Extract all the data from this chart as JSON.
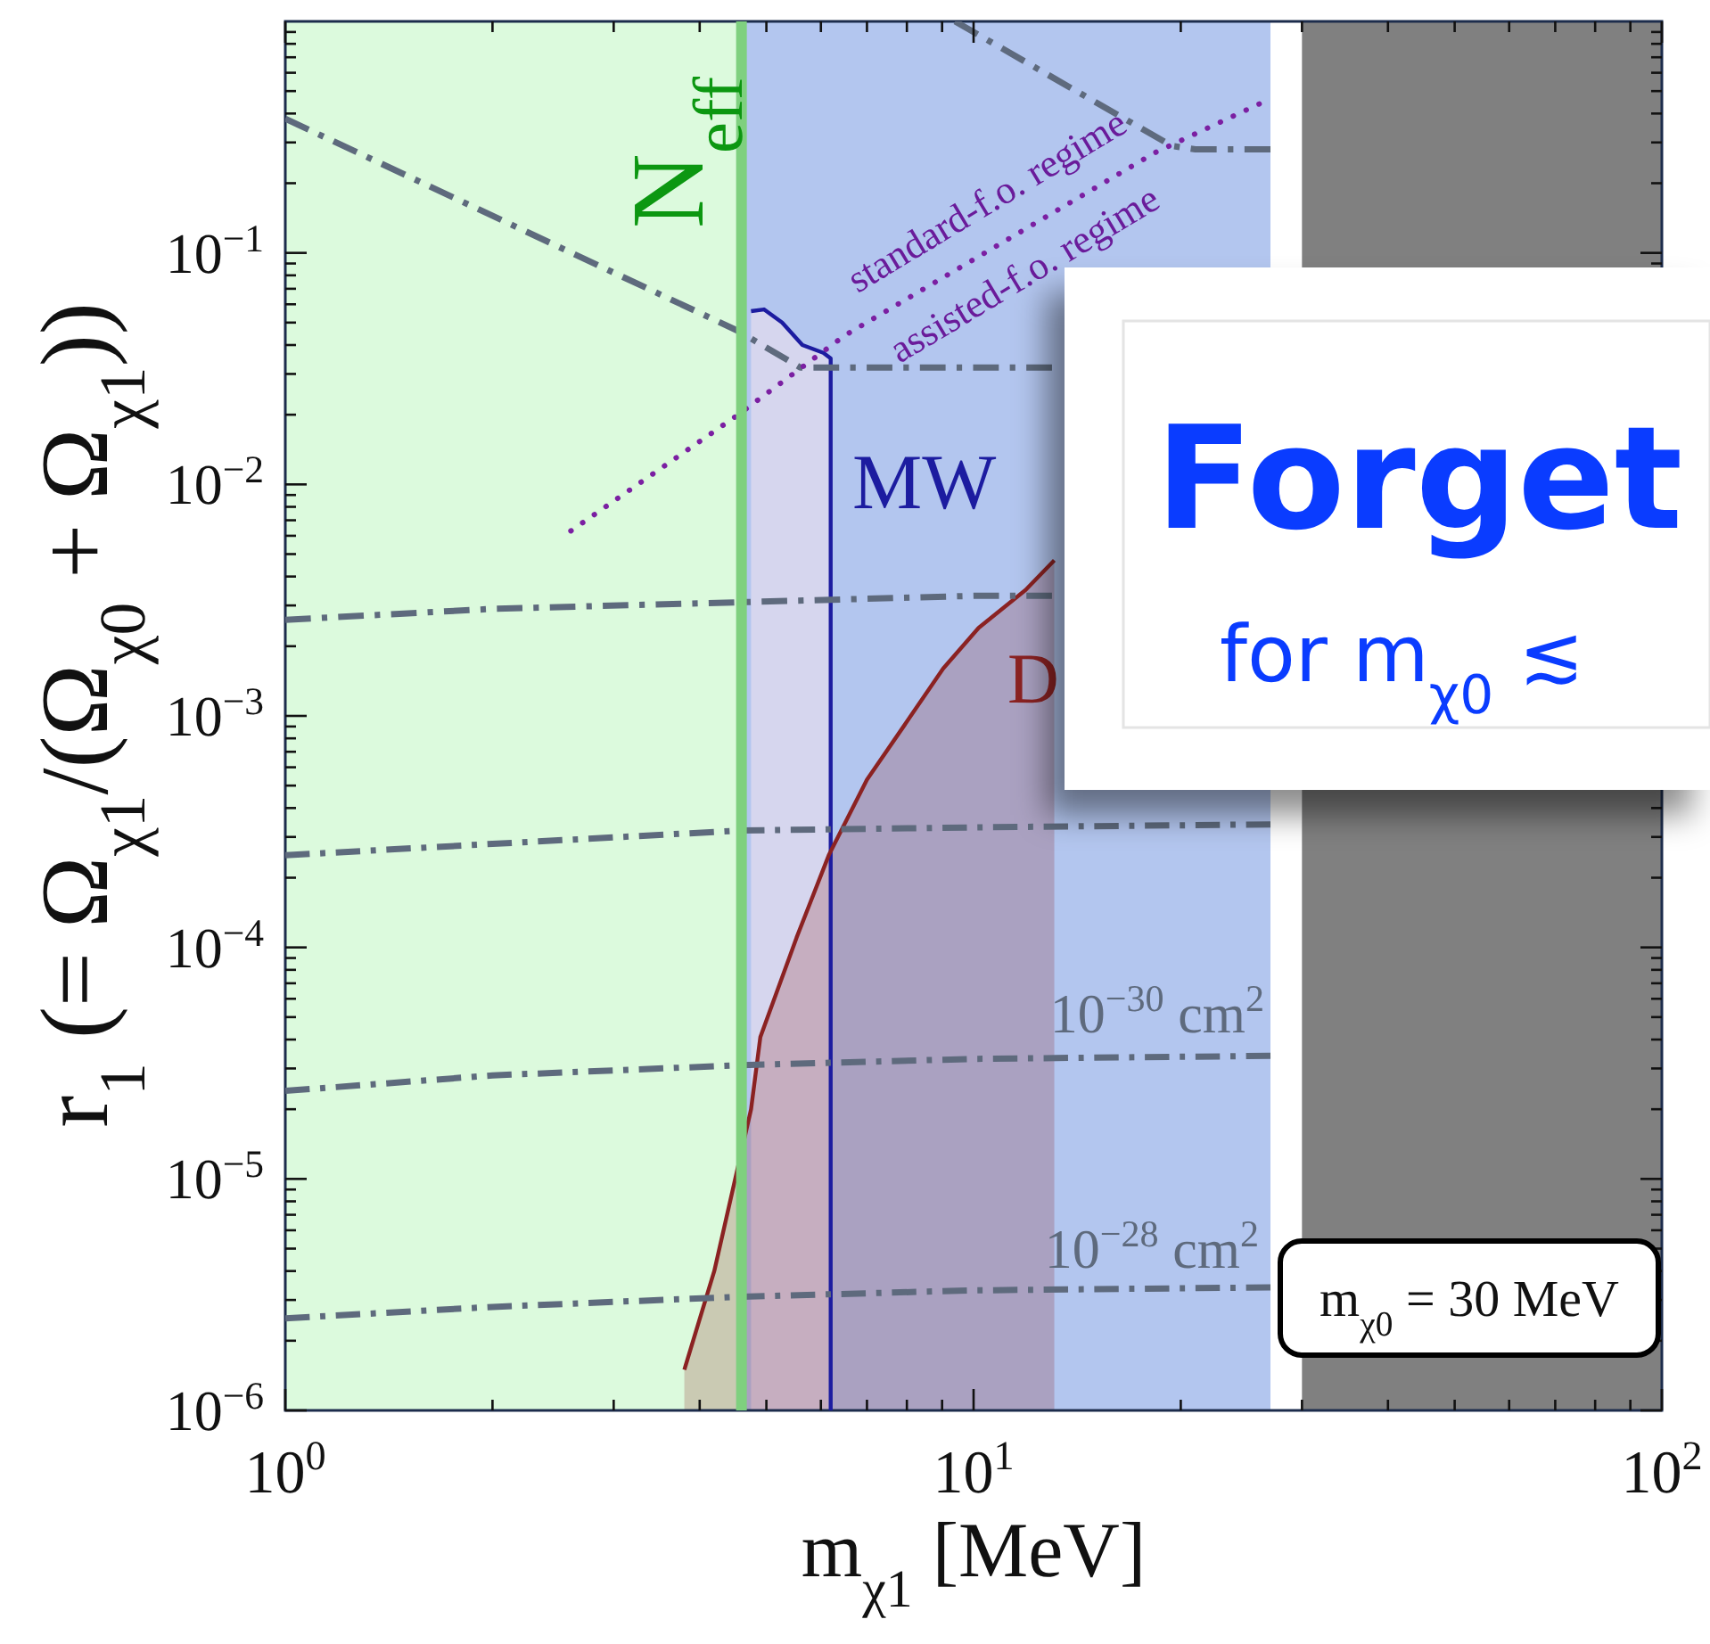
{
  "chart_data": {
    "type": "line",
    "xlabel": "m$_{χ1}$ [MeV]",
    "ylabel": "r$_{1}$ (= Ω$_{χ1}$/(Ω$_{χ0}$ + Ω$_{χ1}$))",
    "log": "xy",
    "xlim": [
      1,
      100
    ],
    "ylim": [
      1e-06,
      1
    ],
    "xticks": [
      {
        "value": 1,
        "label": "10$^{0}$"
      },
      {
        "value": 2,
        "label": null
      },
      {
        "value": 3,
        "label": null
      },
      {
        "value": 4,
        "label": null
      },
      {
        "value": 5,
        "label": null
      },
      {
        "value": 6,
        "label": null
      },
      {
        "value": 7,
        "label": null
      },
      {
        "value": 8,
        "label": null
      },
      {
        "value": 9,
        "label": null
      },
      {
        "value": 10,
        "label": "10$^{1}$"
      },
      {
        "value": 20,
        "label": null
      },
      {
        "value": 30,
        "label": null
      },
      {
        "value": 40,
        "label": null
      },
      {
        "value": 50,
        "label": null
      },
      {
        "value": 60,
        "label": null
      },
      {
        "value": 70,
        "label": null
      },
      {
        "value": 80,
        "label": null
      },
      {
        "value": 90,
        "label": null
      },
      {
        "value": 100,
        "label": "10$^{2}$"
      }
    ],
    "yticks": [
      {
        "value": 1e-06,
        "label": "10$^{−6}$"
      },
      {
        "value": 2e-06,
        "label": null
      },
      {
        "value": 3e-06,
        "label": null
      },
      {
        "value": 4e-06,
        "label": null
      },
      {
        "value": 5e-06,
        "label": null
      },
      {
        "value": 6e-06,
        "label": null
      },
      {
        "value": 7e-06,
        "label": null
      },
      {
        "value": 8e-06,
        "label": null
      },
      {
        "value": 9e-06,
        "label": null
      },
      {
        "value": 1e-05,
        "label": "10$^{−5}$"
      },
      {
        "value": 2e-05,
        "label": null
      },
      {
        "value": 3e-05,
        "label": null
      },
      {
        "value": 4e-05,
        "label": null
      },
      {
        "value": 5e-05,
        "label": null
      },
      {
        "value": 6e-05,
        "label": null
      },
      {
        "value": 7e-05,
        "label": null
      },
      {
        "value": 8e-05,
        "label": null
      },
      {
        "value": 9e-05,
        "label": null
      },
      {
        "value": 0.0001,
        "label": "10$^{−4}$"
      },
      {
        "value": 0.0002,
        "label": null
      },
      {
        "value": 0.0003,
        "label": null
      },
      {
        "value": 0.0004,
        "label": null
      },
      {
        "value": 0.0005,
        "label": null
      },
      {
        "value": 0.0006,
        "label": null
      },
      {
        "value": 0.0007,
        "label": null
      },
      {
        "value": 0.0008,
        "label": null
      },
      {
        "value": 0.0009,
        "label": null
      },
      {
        "value": 0.001,
        "label": "10$^{−3}$"
      },
      {
        "value": 0.002,
        "label": null
      },
      {
        "value": 0.003,
        "label": null
      },
      {
        "value": 0.004,
        "label": null
      },
      {
        "value": 0.005,
        "label": null
      },
      {
        "value": 0.006,
        "label": null
      },
      {
        "value": 0.007,
        "label": null
      },
      {
        "value": 0.008,
        "label": null
      },
      {
        "value": 0.009,
        "label": null
      },
      {
        "value": 0.01,
        "label": "10$^{−2}$"
      },
      {
        "value": 0.02,
        "label": null
      },
      {
        "value": 0.03,
        "label": null
      },
      {
        "value": 0.04,
        "label": null
      },
      {
        "value": 0.05,
        "label": null
      },
      {
        "value": 0.06,
        "label": null
      },
      {
        "value": 0.07,
        "label": null
      },
      {
        "value": 0.08,
        "label": null
      },
      {
        "value": 0.09,
        "label": null
      },
      {
        "value": 0.1,
        "label": "10$^{−1}$"
      },
      {
        "value": 0.2,
        "label": null
      },
      {
        "value": 0.3,
        "label": null
      },
      {
        "value": 0.4,
        "label": null
      },
      {
        "value": 0.5,
        "label": null
      },
      {
        "value": 0.6,
        "label": null
      },
      {
        "value": 0.7,
        "label": null
      },
      {
        "value": 0.8,
        "label": null
      },
      {
        "value": 0.9,
        "label": null
      }
    ],
    "bands": [
      {
        "axis": "x",
        "from": 4.6,
        "to": 27,
        "color": "#b3c6ef"
      },
      {
        "axis": "x",
        "from": 30,
        "to": 100,
        "color": "#808080"
      },
      {
        "axis": "x",
        "from": 1,
        "to": 4.6,
        "label": "N$_{eff}$",
        "color": "#dcfadd"
      }
    ],
    "ref_lines": [
      {
        "axis": "x",
        "value": 4.6,
        "color": "#7fd07f"
      }
    ],
    "series": [
      {
        "name": "MW",
        "color": "#1c1ca0",
        "x": [
          4.75,
          4.96,
          5.27,
          5.64,
          6.05,
          6.2,
          6.2
        ],
        "values": [
          0.056,
          0.057,
          0.05,
          0.04,
          0.037,
          0.035,
          1e-06
        ],
        "lower": [
          1e-06,
          1e-06,
          1e-06,
          1e-06,
          1e-06,
          1e-06,
          1e-06
        ],
        "upper": [
          0.056,
          0.057,
          0.05,
          0.04,
          0.037,
          0.035,
          1e-06
        ]
      },
      {
        "name": "D",
        "type": "area",
        "color": "#8b2222",
        "x": [
          3.8,
          4.2,
          4.75,
          4.9,
          5.53,
          6.16,
          7.0,
          8.03,
          9.03,
          10.17,
          11.9,
          13.1
        ],
        "values": [
          1.5e-06,
          4e-06,
          2e-05,
          4.1e-05,
          0.00011,
          0.00025,
          0.00053,
          0.00096,
          0.0016,
          0.0024,
          0.0035,
          0.0047
        ]
      },
      {
        "name": "10$^{−28}$ cm$^{2}$",
        "color": "#5e6a7d",
        "line_style": "dashed",
        "x": [
          1,
          2,
          4.6,
          10,
          27
        ],
        "values": [
          2.5e-06,
          2.8e-06,
          3.1e-06,
          3.3e-06,
          3.4e-06
        ]
      },
      {
        "name": "10$^{−30}$ cm$^{2}$",
        "color": "#5e6a7d",
        "line_style": "dashed",
        "x": [
          1,
          2,
          4.6,
          10,
          27
        ],
        "values": [
          2.4e-05,
          2.8e-05,
          3.1e-05,
          3.3e-05,
          3.4e-05
        ]
      },
      {
        "color": "#5e6a7d",
        "line_style": "dashed",
        "x": [
          1,
          2,
          4.6,
          10,
          27
        ],
        "values": [
          0.00025,
          0.00028,
          0.00032,
          0.00033,
          0.00034
        ]
      },
      {
        "color": "#5e6a7d",
        "line_style": "dashed",
        "x": [
          1,
          2,
          4.6,
          10,
          13
        ],
        "values": [
          0.0026,
          0.0029,
          0.0031,
          0.0033,
          0.0033
        ]
      },
      {
        "color": "#5e6a7d",
        "line_style": "dashed",
        "x": [
          1,
          4.55,
          5.6,
          13
        ],
        "values": [
          0.38,
          0.046,
          0.032,
          0.032
        ]
      },
      {
        "color": "#5e6a7d",
        "line_style": "dashed",
        "x": [
          9.4,
          19.4,
          21,
          27
        ],
        "values": [
          1,
          0.29,
          0.28,
          0.28
        ]
      },
      {
        "color": "#7b1fa2",
        "line_style": "dotted",
        "x": [
          2.6,
          4.55,
          6.5,
          18.3,
          26
        ],
        "values": [
          0.0063,
          0.02,
          0.044,
          0.27,
          0.44
        ]
      }
    ],
    "annotations": [
      "standard-f.o. regime",
      "assisted-f.o. regime",
      "m$_{χ0}$ = 30 MeV",
      "Forget",
      "for m$_{χ0}$ ≲"
    ]
  }
}
